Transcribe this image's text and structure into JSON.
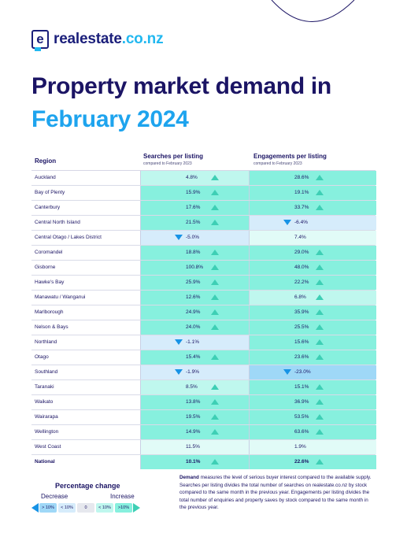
{
  "logo": {
    "name": "realestate",
    "domain": ".co.nz"
  },
  "title": {
    "line1": "Property market demand in",
    "line2": "February 2024"
  },
  "table": {
    "headers": {
      "region": "Region",
      "searches": "Searches per listing",
      "searches_sub": "compared to February 2023",
      "engagements": "Engagements per listing",
      "engagements_sub": "compared to February 2023"
    },
    "rows": [
      {
        "region": "Auckland",
        "searches": "4.8%",
        "searches_dir": "up",
        "engagements": "28.6%",
        "engagements_dir": "up"
      },
      {
        "region": "Bay of Plenty",
        "searches": "15.9%",
        "searches_dir": "up",
        "engagements": "19.1%",
        "engagements_dir": "up"
      },
      {
        "region": "Canterbury",
        "searches": "17.6%",
        "searches_dir": "up",
        "engagements": "33.7%",
        "engagements_dir": "up"
      },
      {
        "region": "Central North Island",
        "searches": "21.5%",
        "searches_dir": "up",
        "engagements": "-6.4%",
        "engagements_dir": "down"
      },
      {
        "region": "Central Otago / Lakes District",
        "searches": "-5.0%",
        "searches_dir": "down",
        "engagements": "7.4%",
        "engagements_dir": "none"
      },
      {
        "region": "Coromandel",
        "searches": "18.8%",
        "searches_dir": "up",
        "engagements": "29.0%",
        "engagements_dir": "up"
      },
      {
        "region": "Gisborne",
        "searches": "100.8%",
        "searches_dir": "up",
        "engagements": "48.0%",
        "engagements_dir": "up"
      },
      {
        "region": "Hawke's Bay",
        "searches": "25.9%",
        "searches_dir": "up",
        "engagements": "22.2%",
        "engagements_dir": "up"
      },
      {
        "region": "Manawatu / Wanganui",
        "searches": "12.6%",
        "searches_dir": "up",
        "engagements": "6.8%",
        "engagements_dir": "up"
      },
      {
        "region": "Marlborough",
        "searches": "24.9%",
        "searches_dir": "up",
        "engagements": "35.9%",
        "engagements_dir": "up"
      },
      {
        "region": "Nelson & Bays",
        "searches": "24.0%",
        "searches_dir": "up",
        "engagements": "25.5%",
        "engagements_dir": "up"
      },
      {
        "region": "Northland",
        "searches": "-1.1%",
        "searches_dir": "down",
        "engagements": "15.6%",
        "engagements_dir": "up"
      },
      {
        "region": "Otago",
        "searches": "15.4%",
        "searches_dir": "up",
        "engagements": "23.6%",
        "engagements_dir": "up"
      },
      {
        "region": "Southland",
        "searches": "-1.9%",
        "searches_dir": "down",
        "engagements": "-23.0%",
        "engagements_dir": "down"
      },
      {
        "region": "Taranaki",
        "searches": "8.5%",
        "searches_dir": "up",
        "engagements": "15.1%",
        "engagements_dir": "up"
      },
      {
        "region": "Waikato",
        "searches": "13.8%",
        "searches_dir": "up",
        "engagements": "36.9%",
        "engagements_dir": "up"
      },
      {
        "region": "Wairarapa",
        "searches": "19.5%",
        "searches_dir": "up",
        "engagements": "53.5%",
        "engagements_dir": "up"
      },
      {
        "region": "Wellington",
        "searches": "14.9%",
        "searches_dir": "up",
        "engagements": "63.6%",
        "engagements_dir": "up"
      },
      {
        "region": "West Coast",
        "searches": "11.5%",
        "searches_dir": "none",
        "engagements": "1.9%",
        "engagements_dir": "none"
      },
      {
        "region": "National",
        "searches": "10.1%",
        "searches_dir": "up",
        "engagements": "22.6%",
        "engagements_dir": "up"
      }
    ]
  },
  "legend": {
    "title": "Percentage change",
    "decrease": "Decrease",
    "increase": "Increase",
    "boxes": [
      "> 10%",
      "< 10%",
      "0",
      "< 10%",
      ">10%"
    ]
  },
  "note": {
    "lead": "Demand",
    "text": " measures the level of serious buyer interest compared to the available supply. Searches per listing divides the total number of searches on realestate.co.nz by stock compared to the same month in the previous year. Engagements per listing divides the total number of enquiries and property saves by stock compared to the same month in the previous year."
  },
  "colors": {
    "navy": "#1b1464",
    "blue": "#1ea4ee",
    "up_big": "#87f0de",
    "up_small": "#bff7ee",
    "down_small": "#d6ecfb",
    "down_big": "#9fd8f7",
    "arrow_up": "#3ecfb5",
    "arrow_down": "#1793e6"
  }
}
